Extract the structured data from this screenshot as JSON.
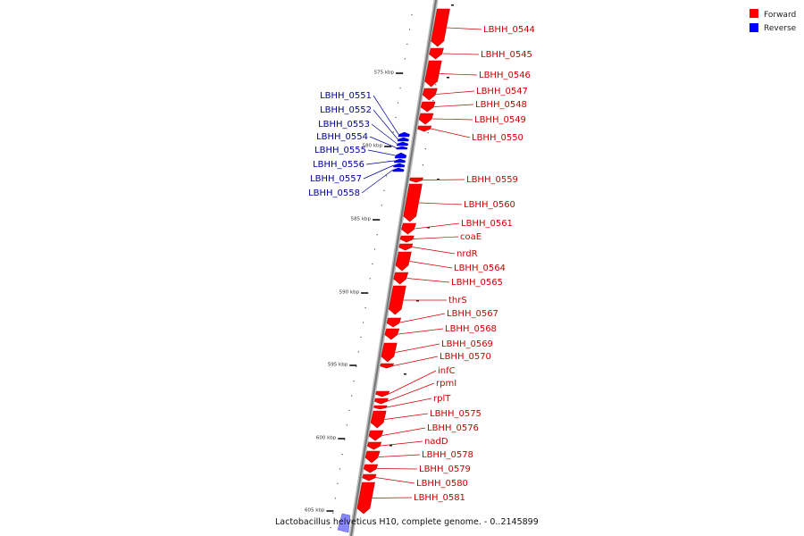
{
  "caption": "Lactobacillus helveticus H10, complete genome. - 0..2145899",
  "legend": {
    "forward_label": "Forward",
    "reverse_label": "Reverse",
    "forward_color": "#ff0000",
    "reverse_color": "#0000ff"
  },
  "colors": {
    "forward": "#ff0000",
    "forward_dark": "#bb0000",
    "forward_label": "#cc0000",
    "reverse": "#0000ff",
    "reverse_label": "#000099",
    "backbone": "#888888"
  },
  "kbp_ticks": [
    "575 kbp",
    "580 kbp",
    "585 kbp",
    "590 kbp",
    "595 kbp",
    "600 kbp",
    "605 kbp"
  ],
  "forward_genes": [
    "LBHH_0544",
    "LBHH_0545",
    "LBHH_0546",
    "LBHH_0547",
    "LBHH_0548",
    "LBHH_0549",
    "LBHH_0550",
    "LBHH_0559",
    "LBHH_0560",
    "LBHH_0561",
    "coaE",
    "nrdR",
    "LBHH_0564",
    "LBHH_0565",
    "thrS",
    "LBHH_0567",
    "LBHH_0568",
    "LBHH_0569",
    "LBHH_0570",
    "infC",
    "rpmI",
    "rplT",
    "LBHH_0575",
    "LBHH_0576",
    "nadD",
    "LBHH_0578",
    "LBHH_0579",
    "LBHH_0580",
    "LBHH_0581"
  ],
  "reverse_genes": [
    "LBHH_0551",
    "LBHH_0552",
    "LBHH_0553",
    "LBHH_0554",
    "LBHH_0555",
    "LBHH_0556",
    "LBHH_0557",
    "LBHH_0558"
  ]
}
